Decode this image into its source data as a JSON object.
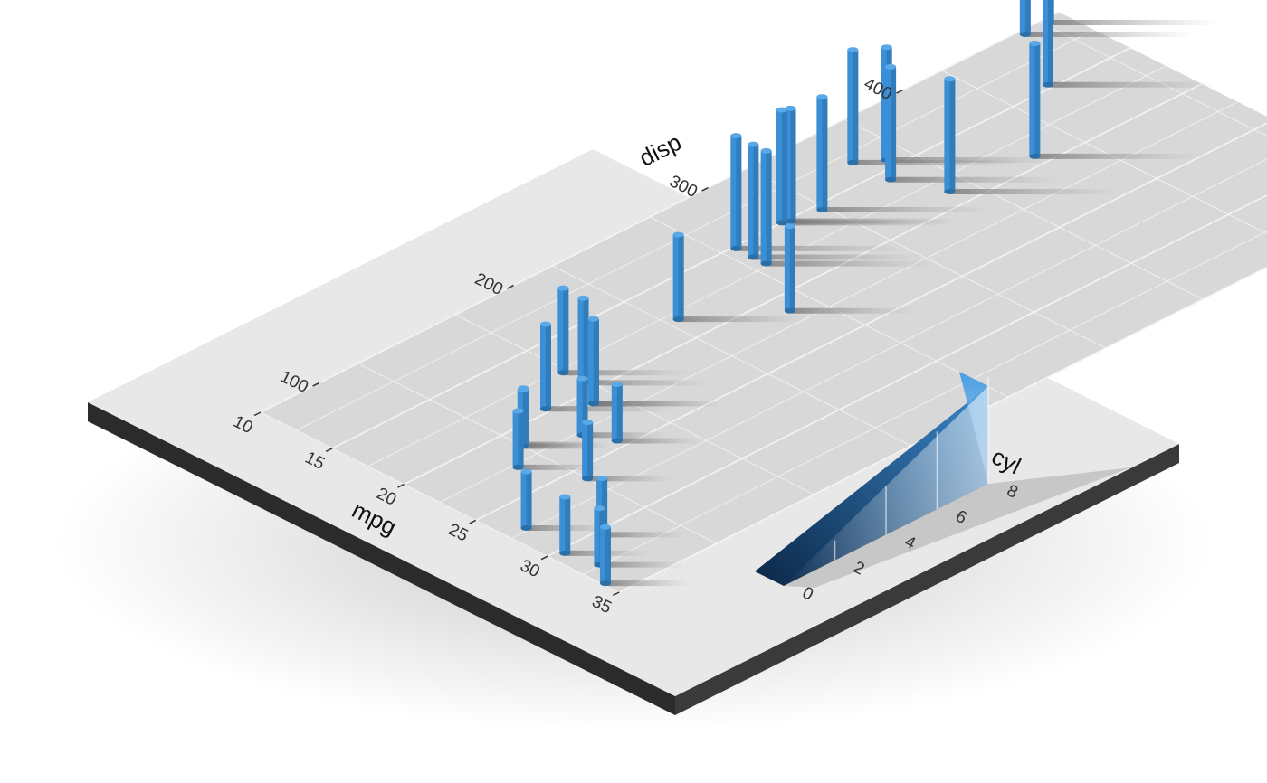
{
  "chart_data": {
    "type": "bar",
    "title": "",
    "x_axis": {
      "label": "mpg",
      "ticks": [
        10,
        15,
        20,
        25,
        30,
        35
      ],
      "range": [
        10,
        35
      ]
    },
    "y_axis": {
      "label": "disp",
      "ticks": [
        100,
        200,
        300,
        400
      ],
      "range": [
        70,
        480
      ]
    },
    "z_axis": {
      "label": "cyl",
      "ticks": [
        0,
        2,
        4,
        6,
        8
      ],
      "range": [
        0,
        8
      ]
    },
    "series": [
      {
        "points": [
          {
            "mpg": 10.4,
            "disp": 472,
            "cyl": 8
          },
          {
            "mpg": 10.4,
            "disp": 460,
            "cyl": 8
          },
          {
            "mpg": 14.7,
            "disp": 440,
            "cyl": 8
          },
          {
            "mpg": 13.3,
            "disp": 350,
            "cyl": 8
          },
          {
            "mpg": 14.3,
            "disp": 360,
            "cyl": 8
          },
          {
            "mpg": 15.8,
            "disp": 351,
            "cyl": 8
          },
          {
            "mpg": 18.7,
            "disp": 360,
            "cyl": 8
          },
          {
            "mpg": 19.2,
            "disp": 400,
            "cyl": 8
          },
          {
            "mpg": 15.5,
            "disp": 318,
            "cyl": 8
          },
          {
            "mpg": 15.2,
            "disp": 304,
            "cyl": 8
          },
          {
            "mpg": 16.4,
            "disp": 276,
            "cyl": 8
          },
          {
            "mpg": 17.3,
            "disp": 276,
            "cyl": 8
          },
          {
            "mpg": 15.2,
            "disp": 276,
            "cyl": 8
          },
          {
            "mpg": 15.0,
            "disp": 301,
            "cyl": 8
          },
          {
            "mpg": 21.4,
            "disp": 258,
            "cyl": 6
          },
          {
            "mpg": 18.1,
            "disp": 225,
            "cyl": 6
          },
          {
            "mpg": 21.0,
            "disp": 160,
            "cyl": 6
          },
          {
            "mpg": 21.0,
            "disp": 160,
            "cyl": 6
          },
          {
            "mpg": 19.2,
            "disp": 168,
            "cyl": 6
          },
          {
            "mpg": 17.8,
            "disp": 168,
            "cyl": 6
          },
          {
            "mpg": 19.7,
            "disp": 145,
            "cyl": 6
          },
          {
            "mpg": 22.8,
            "disp": 108,
            "cyl": 4
          },
          {
            "mpg": 24.4,
            "disp": 147,
            "cyl": 4
          },
          {
            "mpg": 22.8,
            "disp": 141,
            "cyl": 4
          },
          {
            "mpg": 21.5,
            "disp": 120,
            "cyl": 4
          },
          {
            "mpg": 21.4,
            "disp": 121,
            "cyl": 4
          },
          {
            "mpg": 26.0,
            "disp": 120,
            "cyl": 4
          },
          {
            "mpg": 27.3,
            "disp": 79,
            "cyl": 4
          },
          {
            "mpg": 30.4,
            "disp": 95,
            "cyl": 4
          },
          {
            "mpg": 32.4,
            "disp": 79,
            "cyl": 4
          },
          {
            "mpg": 30.4,
            "disp": 76,
            "cyl": 4
          },
          {
            "mpg": 33.9,
            "disp": 71,
            "cyl": 4
          }
        ]
      }
    ],
    "grid": true,
    "legend": "none",
    "colors": {
      "bar": "#3a8fd6",
      "bar_dark": "#2a6fa8",
      "panel": "#e8e8e8",
      "panel_inner": "#d9d9d9",
      "base_edge": "#2b2b2b",
      "grid": "#f4f4f4"
    }
  }
}
